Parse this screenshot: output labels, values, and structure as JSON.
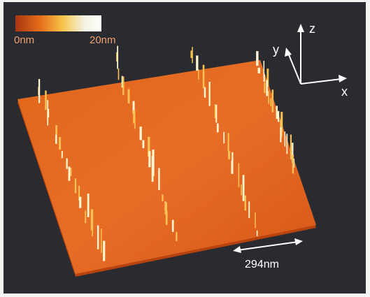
{
  "colorbar": {
    "min_label": "0nm",
    "max_label": "20nm"
  },
  "axes": {
    "z": "z",
    "y": "y",
    "x": "x"
  },
  "scale_bar": {
    "label": "294nm"
  }
}
